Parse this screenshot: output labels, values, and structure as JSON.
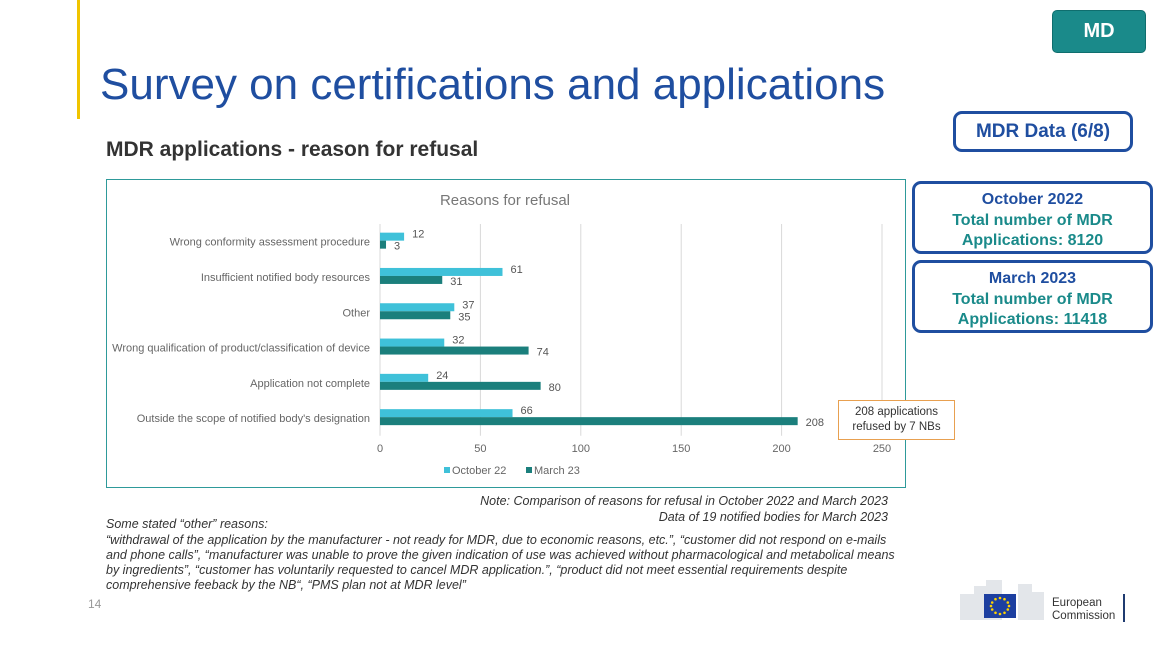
{
  "header": {
    "tag": "MD",
    "title": "Survey on certifications and applications",
    "subtitle": "MDR applications - reason for refusal",
    "data_badge": "MDR Data (6/8)"
  },
  "stats": [
    {
      "line1": "October 2022",
      "line2": "Total number of MDR",
      "line3": "Applications: 8120"
    },
    {
      "line1": "March 2023",
      "line2": "Total number of MDR",
      "line3": "Applications: 11418"
    }
  ],
  "chart_data": {
    "type": "bar",
    "orientation": "horizontal",
    "title": "Reasons for refusal",
    "categories": [
      "Wrong conformity assessment procedure",
      "Insufficient notified body resources",
      "Other",
      "Wrong qualification of product/classification of device",
      "Application not complete",
      "Outside the scope of notified body's designation"
    ],
    "series": [
      {
        "name": "October 22",
        "color": "#3fc1d9",
        "values": [
          12,
          61,
          37,
          32,
          24,
          66
        ]
      },
      {
        "name": "March 23",
        "color": "#1b7f7c",
        "values": [
          3,
          31,
          35,
          74,
          80,
          208
        ]
      }
    ],
    "xlim": [
      0,
      250
    ],
    "xticks": [
      0,
      50,
      100,
      150,
      200,
      250
    ],
    "grid": true,
    "legend": "bottom"
  },
  "callout": {
    "line1": "208 applications",
    "line2": "refused by 7 NBs"
  },
  "notes": {
    "line1": "Note: Comparison of reasons for refusal in October 2022 and March 2023",
    "line2": "Data of 19 notified bodies for March 2023"
  },
  "others": {
    "title": "Some stated “other” reasons:",
    "body": "“withdrawal of the application by the manufacturer - not ready for MDR, due to economic reasons, etc.”, “customer did not respond on e-mails and phone calls”, “manufacturer was unable to prove the given indication of use was achieved without pharmacological and metabolical means by ingredients”, “customer has voluntarily requested to cancel MDR application.”, “product did not meet essential requirements despite comprehensive feeback by the NB“, “PMS plan not at MDR level”"
  },
  "footer": {
    "page_number": "14",
    "logo_line1": "European",
    "logo_line2": "Commission"
  }
}
